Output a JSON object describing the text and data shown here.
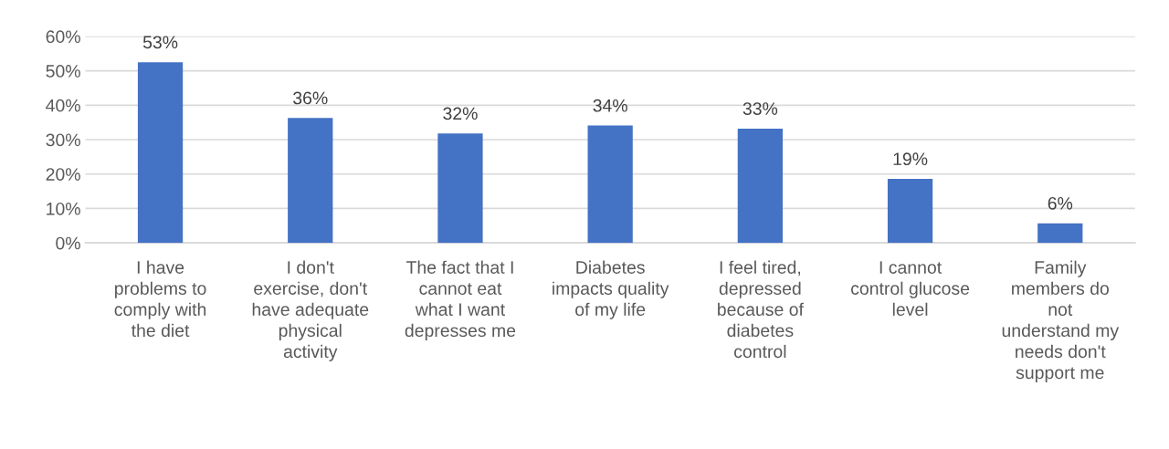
{
  "chart_data": {
    "type": "bar",
    "categories": [
      "I have\nproblems to\ncomply with\nthe diet",
      "I don't\nexercise, don't\nhave adequate\nphysical\nactivity",
      "The fact that I\ncannot eat\nwhat I want\ndepresses me",
      "Diabetes\nimpacts quality\nof my life",
      "I feel tired,\ndepressed\nbecause of\ndiabetes\ncontrol",
      "I cannot\ncontrol glucose\nlevel",
      "Family\nmembers do\nnot\nunderstand my\nneeds don't\nsupport me"
    ],
    "values": [
      52.5,
      36.3,
      31.8,
      34.1,
      33.2,
      18.6,
      5.7
    ],
    "value_labels": [
      "53%",
      "36%",
      "32%",
      "34%",
      "33%",
      "19%",
      "6%"
    ],
    "color": "#4472c4",
    "ylim": [
      0,
      60
    ],
    "yticks": [
      {
        "value": 0,
        "label": "0%"
      },
      {
        "value": 10,
        "label": "10%"
      },
      {
        "value": 20,
        "label": "20%"
      },
      {
        "value": 30,
        "label": "30%"
      },
      {
        "value": 40,
        "label": "40%"
      },
      {
        "value": 50,
        "label": "50%"
      },
      {
        "value": 60,
        "label": "60%"
      }
    ],
    "grid": "y"
  }
}
